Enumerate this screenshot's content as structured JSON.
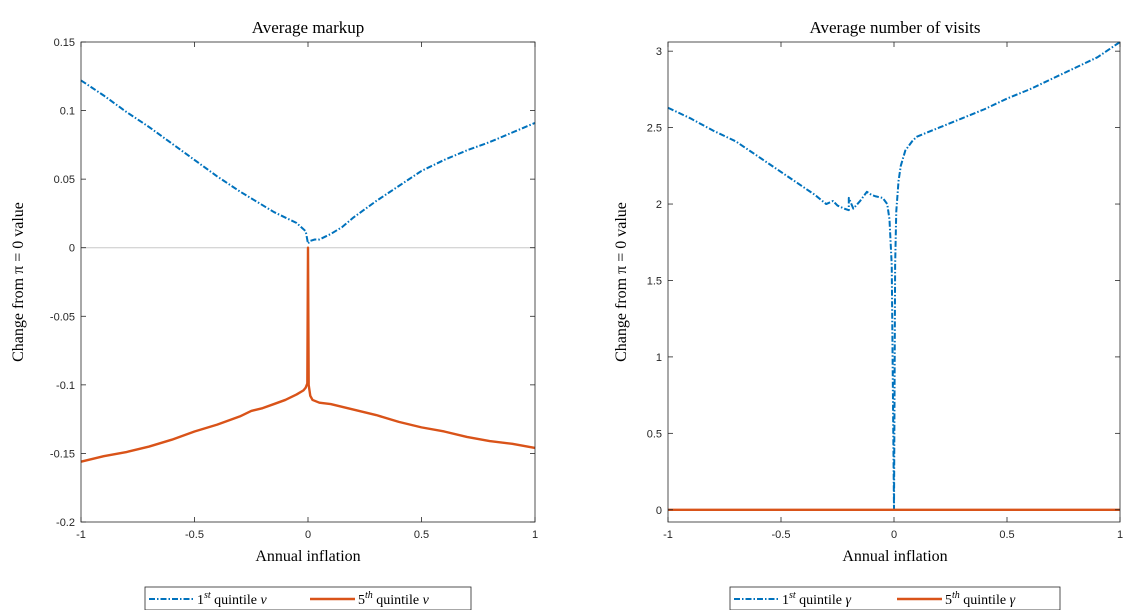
{
  "colors": {
    "series1": "#0072BD",
    "series2": "#D95319",
    "zero_line": "#c8c8c8",
    "axes": "#262626"
  },
  "chart_data": [
    {
      "type": "line",
      "title": "Average markup",
      "xlabel": "Annual inflation",
      "ylabel": "Change from π = 0 value",
      "xlim": [
        -1,
        1
      ],
      "ylim": [
        -0.2,
        0.15
      ],
      "xticks": [
        -1,
        -0.5,
        0,
        0.5,
        1
      ],
      "xtick_labels": [
        "-1",
        "-0.5",
        "0",
        "0.5",
        "1"
      ],
      "yticks": [
        -0.2,
        -0.15,
        -0.1,
        -0.05,
        0,
        0.05,
        0.1,
        0.15
      ],
      "ytick_labels": [
        "-0.2",
        "-0.15",
        "-0.1",
        "-0.05",
        "0",
        "0.05",
        "0.1",
        "0.15"
      ],
      "reference_line_y": 0,
      "legend_location": "below",
      "legend": {
        "s1_sup": "st",
        "s1_pre": "1",
        "s1_post": " quintile ",
        "s1_var": "v",
        "s2_pre": "5",
        "s2_sup": "th",
        "s2_post": " quintile ",
        "s2_var": "v"
      },
      "series": [
        {
          "style": "dash-dot",
          "color": "#0072BD",
          "x": [
            -1,
            -0.9,
            -0.8,
            -0.7,
            -0.6,
            -0.5,
            -0.4,
            -0.3,
            -0.2,
            -0.15,
            -0.1,
            -0.05,
            -0.03,
            -0.01,
            0,
            0.01,
            0.03,
            0.05,
            0.1,
            0.15,
            0.2,
            0.3,
            0.4,
            0.5,
            0.6,
            0.7,
            0.8,
            0.9,
            1
          ],
          "y": [
            0.122,
            0.111,
            0.099,
            0.088,
            0.076,
            0.064,
            0.052,
            0.041,
            0.031,
            0.026,
            0.022,
            0.018,
            0.015,
            0.012,
            0.003,
            0.005,
            0.006,
            0.006,
            0.01,
            0.015,
            0.022,
            0.034,
            0.045,
            0.056,
            0.064,
            0.071,
            0.077,
            0.084,
            0.091
          ]
        },
        {
          "style": "solid",
          "color": "#D95319",
          "x": [
            -1,
            -0.9,
            -0.8,
            -0.7,
            -0.6,
            -0.5,
            -0.4,
            -0.3,
            -0.25,
            -0.2,
            -0.15,
            -0.1,
            -0.05,
            -0.02,
            -0.01,
            -0.003,
            0,
            0.003,
            0.01,
            0.02,
            0.05,
            0.1,
            0.2,
            0.3,
            0.4,
            0.5,
            0.6,
            0.7,
            0.8,
            0.9,
            1
          ],
          "y": [
            -0.156,
            -0.152,
            -0.149,
            -0.145,
            -0.14,
            -0.134,
            -0.129,
            -0.123,
            -0.119,
            -0.117,
            -0.114,
            -0.111,
            -0.107,
            -0.104,
            -0.102,
            -0.099,
            0,
            -0.1,
            -0.108,
            -0.111,
            -0.113,
            -0.114,
            -0.118,
            -0.122,
            -0.127,
            -0.131,
            -0.134,
            -0.138,
            -0.141,
            -0.143,
            -0.146
          ]
        }
      ]
    },
    {
      "type": "line",
      "title": "Average number of visits",
      "xlabel": "Annual inflation",
      "ylabel": "Change from π = 0 value",
      "xlim": [
        -1,
        1
      ],
      "ylim": [
        -0.08,
        3.06
      ],
      "xticks": [
        -1,
        -0.5,
        0,
        0.5,
        1
      ],
      "xtick_labels": [
        "-1",
        "-0.5",
        "0",
        "0.5",
        "1"
      ],
      "yticks": [
        0,
        0.5,
        1,
        1.5,
        2,
        2.5,
        3
      ],
      "ytick_labels": [
        "0",
        "0.5",
        "1",
        "1.5",
        "2",
        "2.5",
        "3"
      ],
      "legend_location": "below",
      "legend": {
        "s1_pre": "1",
        "s1_sup": "st",
        "s1_post": " quintile ",
        "s1_var": "γ",
        "s2_pre": "5",
        "s2_sup": "th",
        "s2_post": " quintile ",
        "s2_var": "γ"
      },
      "series": [
        {
          "style": "dash-dot",
          "color": "#0072BD",
          "x": [
            -1,
            -0.9,
            -0.8,
            -0.7,
            -0.6,
            -0.5,
            -0.4,
            -0.35,
            -0.3,
            -0.27,
            -0.25,
            -0.22,
            -0.2,
            -0.2,
            -0.18,
            -0.15,
            -0.12,
            -0.1,
            -0.08,
            -0.05,
            -0.03,
            -0.02,
            -0.01,
            -0.005,
            0,
            0.005,
            0.01,
            0.02,
            0.03,
            0.05,
            0.08,
            0.1,
            0.2,
            0.3,
            0.4,
            0.5,
            0.6,
            0.7,
            0.8,
            0.9,
            1
          ],
          "y": [
            2.63,
            2.56,
            2.48,
            2.41,
            2.31,
            2.21,
            2.11,
            2.06,
            2.0,
            2.02,
            1.99,
            1.97,
            1.96,
            2.04,
            1.97,
            2.02,
            2.08,
            2.06,
            2.05,
            2.04,
            2.0,
            1.9,
            1.6,
            0.8,
            0,
            1.6,
            1.95,
            2.15,
            2.25,
            2.35,
            2.41,
            2.44,
            2.5,
            2.56,
            2.62,
            2.69,
            2.75,
            2.82,
            2.89,
            2.96,
            3.06
          ]
        },
        {
          "style": "solid",
          "color": "#D95319",
          "x": [
            -1,
            1
          ],
          "y": [
            0,
            0
          ]
        }
      ]
    }
  ]
}
